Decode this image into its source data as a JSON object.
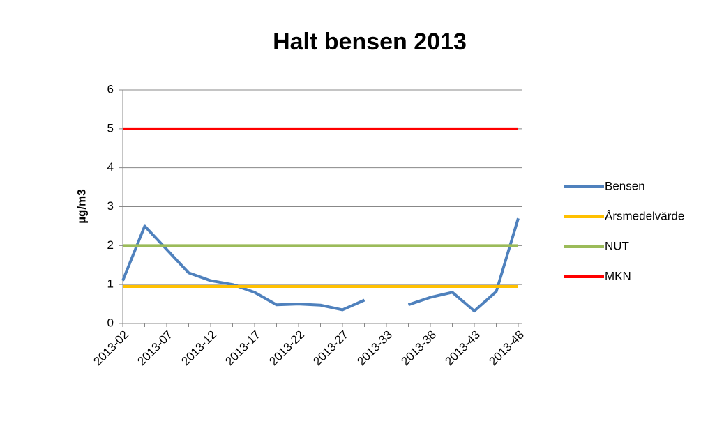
{
  "chart_data": {
    "type": "line",
    "title": "Halt bensen 2013",
    "y_label": "µg/m3",
    "categories": [
      "2013-02",
      null,
      "2013-07",
      null,
      "2013-12",
      null,
      "2013-17",
      null,
      "2013-22",
      null,
      "2013-27",
      null,
      "2013-33",
      null,
      "2013-38",
      null,
      "2013-43",
      null,
      "2013-48"
    ],
    "series": [
      {
        "name": "Bensen",
        "color": "#4f81bd",
        "values": [
          1.1,
          2.5,
          1.9,
          1.3,
          1.1,
          1.0,
          0.8,
          0.48,
          0.5,
          0.47,
          0.35,
          0.6,
          null,
          0.48,
          0.67,
          0.8,
          0.32,
          0.82,
          2.7
        ]
      },
      {
        "name": "Årsmedelvärde",
        "color": "#ffc000",
        "values": [
          0.95,
          0.95,
          0.95,
          0.95,
          0.95,
          0.95,
          0.95,
          0.95,
          0.95,
          0.95,
          0.95,
          0.95,
          0.95,
          0.95,
          0.95,
          0.95,
          0.95,
          0.95,
          0.95
        ]
      },
      {
        "name": "NUT",
        "color": "#9bbb59",
        "values": [
          2,
          2,
          2,
          2,
          2,
          2,
          2,
          2,
          2,
          2,
          2,
          2,
          2,
          2,
          2,
          2,
          2,
          2,
          2
        ]
      },
      {
        "name": "MKN",
        "color": "#ff0000",
        "values": [
          5,
          5,
          5,
          5,
          5,
          5,
          5,
          5,
          5,
          5,
          5,
          5,
          5,
          5,
          5,
          5,
          5,
          5,
          5
        ]
      }
    ],
    "ylim": [
      0,
      6
    ],
    "yticks": [
      0,
      1,
      2,
      3,
      4,
      5,
      6
    ],
    "grid": true,
    "legend": "right"
  }
}
